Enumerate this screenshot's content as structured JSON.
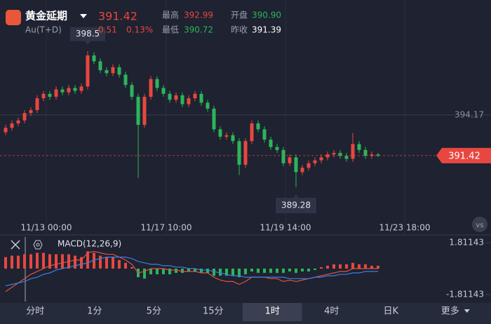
{
  "header": {
    "title": "黄金延期",
    "code": "Au(T+D)",
    "price": "391.42",
    "change": "0.51",
    "change_pct": "0.13%",
    "stats": [
      {
        "label": "最高",
        "value": "392.99"
      },
      {
        "label": "开盘",
        "value": "390.90"
      },
      {
        "label": "最低",
        "value": "390.72"
      },
      {
        "label": "昨收",
        "value": "391.39"
      }
    ]
  },
  "chart_data": {
    "type": "candlestick",
    "up_color": "#e8473f",
    "down_color": "#2cb55a",
    "x_axis_labels": [
      "11/13 00:00",
      "11/17 10:00",
      "11/19 14:00",
      "11/23 18:00"
    ],
    "ylim": [
      387.0,
      401.95
    ],
    "yticks": [
      394.17
    ],
    "open": [
      393.0,
      393.3,
      393.6,
      393.8,
      394.3,
      394.5,
      395.3,
      395.6,
      395.4,
      395.9,
      395.7,
      396.0,
      395.8,
      396.1,
      398.2,
      397.8,
      397.2,
      397.0,
      397.4,
      396.9,
      396.2,
      395.4,
      393.5,
      395.4,
      396.6,
      396.0,
      395.6,
      395.2,
      395.5,
      394.9,
      395.3,
      395.6,
      395.0,
      394.6,
      393.2,
      392.7,
      392.8,
      392.4,
      390.8,
      392.4,
      393.6,
      393.2,
      392.5,
      392.0,
      391.8,
      390.9,
      391.3,
      390.3,
      390.6,
      390.9,
      391.1,
      391.3,
      391.5,
      391.6,
      391.4,
      391.2,
      392.2,
      391.8,
      391.4,
      391.5
    ],
    "high": [
      393.5,
      393.8,
      394.0,
      394.5,
      394.7,
      395.5,
      395.8,
      395.8,
      396.1,
      396.1,
      396.2,
      396.2,
      396.3,
      398.5,
      398.4,
      398.0,
      397.4,
      397.6,
      397.6,
      397.1,
      396.4,
      395.6,
      395.6,
      396.8,
      396.8,
      396.2,
      395.8,
      395.7,
      395.7,
      395.5,
      395.8,
      395.8,
      395.2,
      394.8,
      393.4,
      393.0,
      393.0,
      392.6,
      392.6,
      393.8,
      393.8,
      393.4,
      392.7,
      392.2,
      392.0,
      391.5,
      391.5,
      390.8,
      391.1,
      391.3,
      391.5,
      391.7,
      391.8,
      391.8,
      391.6,
      392.95,
      392.4,
      392.0,
      391.7,
      391.6
    ],
    "low": [
      392.8,
      393.1,
      393.4,
      393.6,
      394.1,
      394.3,
      395.1,
      395.2,
      395.2,
      395.5,
      395.5,
      395.6,
      395.6,
      395.9,
      397.6,
      397.0,
      396.8,
      396.8,
      396.7,
      396.0,
      395.2,
      389.9,
      393.3,
      395.2,
      395.8,
      395.4,
      395.0,
      395.0,
      394.7,
      394.7,
      395.1,
      394.8,
      394.4,
      393.0,
      392.5,
      392.5,
      392.2,
      390.1,
      390.6,
      392.2,
      393.0,
      392.3,
      391.8,
      391.6,
      390.7,
      390.7,
      389.28,
      390.1,
      390.4,
      390.7,
      390.9,
      391.1,
      391.3,
      391.2,
      391.0,
      391.0,
      391.6,
      391.2,
      391.2,
      391.3
    ],
    "close": [
      393.3,
      393.6,
      393.8,
      394.3,
      394.5,
      395.3,
      395.6,
      395.4,
      395.9,
      395.7,
      396.0,
      395.8,
      396.1,
      398.2,
      397.8,
      397.2,
      397.0,
      397.4,
      396.9,
      396.2,
      395.4,
      393.5,
      395.4,
      396.6,
      396.0,
      395.6,
      395.2,
      395.5,
      394.9,
      395.3,
      395.6,
      395.0,
      394.6,
      393.2,
      392.7,
      392.8,
      392.4,
      390.8,
      392.4,
      393.6,
      393.2,
      392.5,
      392.0,
      391.8,
      390.9,
      391.3,
      390.3,
      390.6,
      390.9,
      391.1,
      391.3,
      391.5,
      391.6,
      391.4,
      391.2,
      392.2,
      391.8,
      391.4,
      391.5,
      391.42
    ],
    "macd": {
      "label": "MACD(12,26,9)",
      "ylim": [
        -2.2,
        2.2
      ],
      "yticks": [
        1.81143,
        -1.81143
      ],
      "dif_color": "#e2533e",
      "dea_color": "#3f7fe0",
      "histogram": [
        0.8,
        0.9,
        0.9,
        1.0,
        1.0,
        1.1,
        1.1,
        1.0,
        1.0,
        1.0,
        1.0,
        0.9,
        0.8,
        1.2,
        1.1,
        0.9,
        0.8,
        0.8,
        0.6,
        0.4,
        0.1,
        -0.6,
        -0.7,
        -0.4,
        -0.4,
        -0.4,
        -0.4,
        -0.3,
        -0.3,
        -0.2,
        -0.2,
        -0.3,
        -0.3,
        -0.5,
        -0.5,
        -0.5,
        -0.5,
        -0.6,
        -0.4,
        -0.2,
        -0.3,
        -0.3,
        -0.3,
        -0.3,
        -0.3,
        -0.2,
        -0.3,
        -0.2,
        -0.2,
        -0.1,
        0.1,
        0.2,
        0.3,
        0.3,
        0.3,
        0.4,
        0.3,
        0.3,
        0.2,
        0.2
      ],
      "dif": [
        -1.6,
        -1.3,
        -1.0,
        -0.7,
        -0.4,
        -0.2,
        0.0,
        0.2,
        0.3,
        0.4,
        0.5,
        0.6,
        0.6,
        1.1,
        1.2,
        1.1,
        1.0,
        1.0,
        0.8,
        0.6,
        0.3,
        -0.3,
        -0.2,
        0.0,
        0.0,
        0.0,
        -0.1,
        -0.1,
        -0.2,
        -0.2,
        -0.2,
        -0.3,
        -0.3,
        -0.6,
        -0.8,
        -0.9,
        -0.9,
        -1.1,
        -0.9,
        -0.6,
        -0.6,
        -0.6,
        -0.7,
        -0.7,
        -0.9,
        -0.8,
        -0.9,
        -0.8,
        -0.7,
        -0.6,
        -0.5,
        -0.4,
        -0.3,
        -0.2,
        -0.2,
        0.0,
        0.0,
        0.0,
        0.0,
        0.0
      ],
      "dea": [
        -1.2,
        -1.1,
        -1.0,
        -0.9,
        -0.7,
        -0.6,
        -0.4,
        -0.3,
        -0.1,
        0.0,
        0.1,
        0.2,
        0.3,
        0.4,
        0.6,
        0.7,
        0.8,
        0.8,
        0.8,
        0.8,
        0.7,
        0.5,
        0.4,
        0.3,
        0.3,
        0.2,
        0.2,
        0.1,
        0.1,
        0.0,
        0.0,
        -0.1,
        -0.1,
        -0.2,
        -0.3,
        -0.4,
        -0.5,
        -0.5,
        -0.6,
        -0.6,
        -0.6,
        -0.6,
        -0.6,
        -0.6,
        -0.6,
        -0.7,
        -0.7,
        -0.7,
        -0.7,
        -0.6,
        -0.6,
        -0.5,
        -0.5,
        -0.4,
        -0.4,
        -0.3,
        -0.3,
        -0.2,
        -0.2,
        -0.2
      ]
    }
  },
  "tabs": [
    "分时",
    "1分",
    "5分",
    "15分",
    "1时",
    "4时",
    "日K",
    "更多"
  ],
  "selected_tab": 4
}
